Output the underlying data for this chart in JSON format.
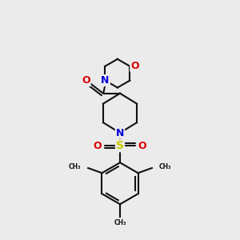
{
  "bg_color": "#ebebeb",
  "bond_color": "#111111",
  "N_color": "#0000dd",
  "O_color": "#dd0000",
  "S_color": "#cccc00",
  "lw": 1.5,
  "figsize": [
    3.0,
    3.0
  ],
  "dpi": 100,
  "xlim": [
    -1,
    11
  ],
  "ylim": [
    -1,
    11
  ]
}
